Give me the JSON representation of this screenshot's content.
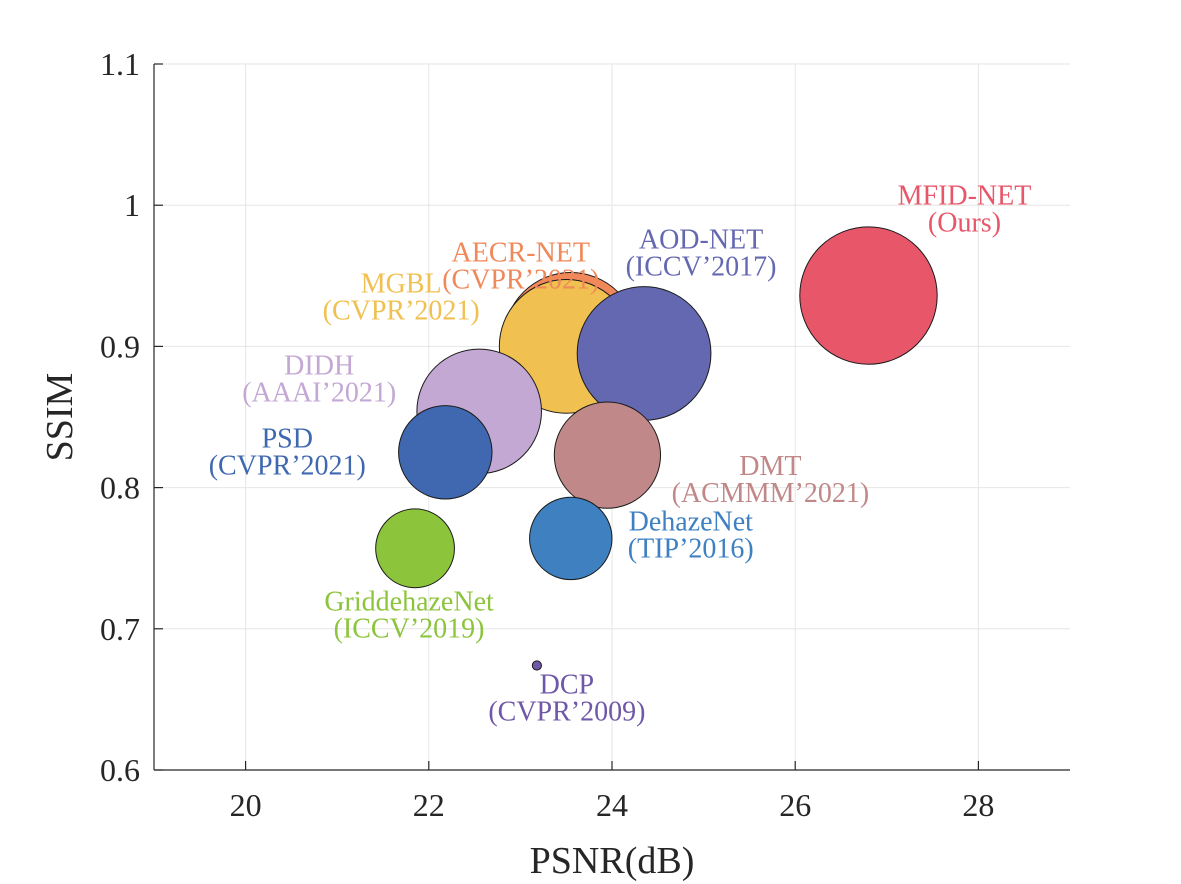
{
  "chart_data": {
    "type": "scatter",
    "xlabel": "PSNR(dB)",
    "ylabel": "SSIM",
    "xlim": [
      19,
      29
    ],
    "ylim": [
      0.6,
      1.1
    ],
    "xticks": [
      "20",
      "22",
      "24",
      "26",
      "28"
    ],
    "yticks": [
      "0.6",
      "0.7",
      "0.8",
      "0.9",
      "1",
      "1.1"
    ],
    "grid": true,
    "points": [
      {
        "name": "AECR-NET",
        "venue": "(CVPR’2021)",
        "x": 23.55,
        "y": 0.905,
        "size": 0.73,
        "color": "#f0885a"
      },
      {
        "name": "MGBL",
        "venue": "(CVPR’2021)",
        "x": 23.5,
        "y": 0.9,
        "size": 0.73,
        "color": "#f0c050"
      },
      {
        "name": "AOD-NET",
        "venue": "(ICCV’2017)",
        "x": 24.35,
        "y": 0.895,
        "size": 0.73,
        "color": "#6468b0"
      },
      {
        "name": "MFID-NET",
        "venue": "(Ours)",
        "x": 26.8,
        "y": 0.936,
        "size": 0.75,
        "color": "#e8566a"
      },
      {
        "name": "DIDH",
        "venue": "(AAAI’2021)",
        "x": 22.55,
        "y": 0.854,
        "size": 0.68,
        "color": "#c4a8d4"
      },
      {
        "name": "PSD",
        "venue": "(CVPR’2021)",
        "x": 22.18,
        "y": 0.825,
        "size": 0.51,
        "color": "#3f68b0"
      },
      {
        "name": "DMT",
        "venue": "(ACMMM’2021)",
        "x": 23.95,
        "y": 0.823,
        "size": 0.58,
        "color": "#c08888"
      },
      {
        "name": "DehazeNet",
        "venue": "(TIP’2016)",
        "x": 23.55,
        "y": 0.764,
        "size": 0.45,
        "color": "#3f80c0"
      },
      {
        "name": "GriddehazeNet",
        "venue": "(ICCV’2019)",
        "x": 21.85,
        "y": 0.757,
        "size": 0.43,
        "color": "#8cc43c"
      },
      {
        "name": "DCP",
        "venue": "(CVPR’2009)",
        "x": 23.18,
        "y": 0.674,
        "size": 0.05,
        "color": "#7058a8"
      }
    ]
  }
}
